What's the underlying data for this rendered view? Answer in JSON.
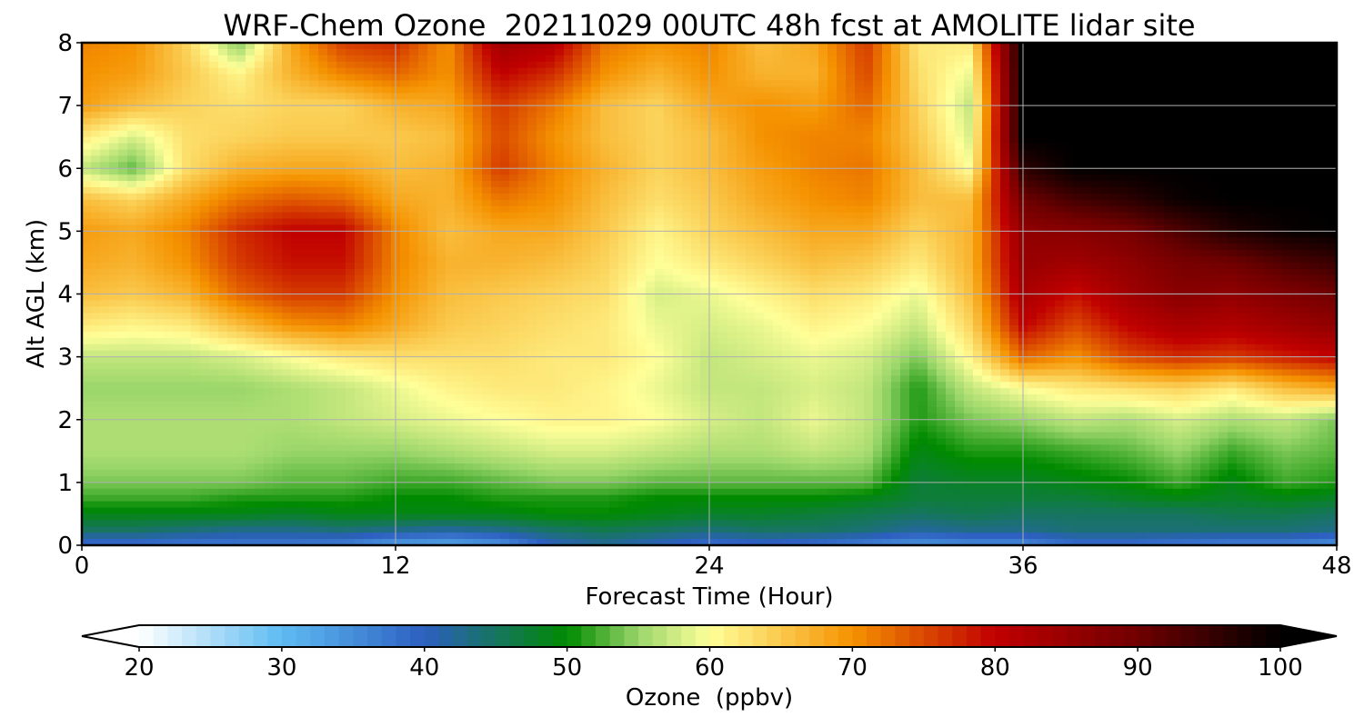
{
  "chart_data": {
    "type": "heatmap",
    "title": "WRF-Chem Ozone  20211029 00UTC 48h fcst at AMOLITE lidar site",
    "xlabel": "Forecast Time (Hour)",
    "ylabel": "Alt AGL (km)",
    "xlim": [
      0,
      48
    ],
    "ylim": [
      0,
      8
    ],
    "xticks": [
      "0",
      "12",
      "24",
      "36",
      "48"
    ],
    "yticks": [
      "0",
      "1",
      "2",
      "3",
      "4",
      "5",
      "6",
      "7",
      "8"
    ],
    "grid": true,
    "colorbar": {
      "label": "Ozone  (ppbv)",
      "range": [
        20,
        100
      ],
      "ticks": [
        "20",
        "30",
        "40",
        "50",
        "60",
        "70",
        "80",
        "90",
        "100"
      ],
      "extend": "both",
      "colors": [
        {
          "v": 20,
          "c": "#ffffff"
        },
        {
          "v": 30,
          "c": "#5ebcf2"
        },
        {
          "v": 40,
          "c": "#2d5fc0"
        },
        {
          "v": 50,
          "c": "#008a00"
        },
        {
          "v": 55,
          "c": "#9ad66a"
        },
        {
          "v": 60,
          "c": "#ffff99"
        },
        {
          "v": 70,
          "c": "#f59200"
        },
        {
          "v": 80,
          "c": "#c00000"
        },
        {
          "v": 90,
          "c": "#700000"
        },
        {
          "v": 100,
          "c": "#000000"
        }
      ]
    },
    "x": [
      0,
      2,
      4,
      6,
      8,
      10,
      12,
      14,
      16,
      18,
      20,
      22,
      24,
      26,
      28,
      30,
      32,
      34,
      36,
      38,
      40,
      42,
      44,
      46,
      48
    ],
    "y": [
      0,
      0.25,
      0.5,
      0.75,
      1,
      1.5,
      2,
      2.5,
      3,
      3.5,
      4,
      4.5,
      5,
      5.5,
      6,
      6.5,
      7,
      7.5,
      8
    ],
    "values": [
      [
        38,
        38,
        37,
        37,
        37,
        36,
        33,
        32,
        34,
        40,
        42,
        40,
        38,
        39,
        38,
        36,
        34,
        35,
        35,
        38,
        38,
        37,
        36,
        36,
        34
      ],
      [
        45,
        45,
        44,
        43,
        43,
        44,
        43,
        42,
        43,
        45,
        46,
        45,
        44,
        45,
        45,
        44,
        42,
        43,
        43,
        44,
        44,
        44,
        44,
        44,
        43
      ],
      [
        49,
        49,
        49,
        49,
        48,
        49,
        49,
        49,
        49,
        50,
        50,
        49,
        48,
        48,
        47,
        46,
        45,
        46,
        45,
        45,
        45,
        45,
        46,
        46,
        45
      ],
      [
        52,
        52,
        52,
        51,
        51,
        51,
        50,
        50,
        51,
        51,
        51,
        50,
        50,
        50,
        50,
        49,
        47,
        47,
        47,
        47,
        48,
        49,
        48,
        49,
        48
      ],
      [
        54,
        54,
        54,
        54,
        53,
        53,
        52,
        52,
        53,
        54,
        54,
        53,
        53,
        53,
        53,
        53,
        47,
        48,
        48,
        49,
        50,
        52,
        49,
        52,
        51
      ],
      [
        56,
        56,
        56,
        56,
        55,
        55,
        55,
        56,
        57,
        58,
        58,
        57,
        56,
        56,
        57,
        56,
        49,
        51,
        51,
        52,
        53,
        55,
        52,
        54,
        53
      ],
      [
        56,
        56,
        56,
        56,
        56,
        57,
        58,
        59,
        60,
        61,
        61,
        60,
        58,
        57,
        59,
        57,
        51,
        54,
        55,
        57,
        56,
        58,
        56,
        57,
        54
      ],
      [
        55,
        55,
        55,
        55,
        56,
        57,
        59,
        61,
        62,
        62,
        61,
        59,
        57,
        57,
        58,
        57,
        51,
        57,
        60,
        62,
        63,
        64,
        62,
        66,
        68
      ],
      [
        57,
        57,
        57,
        58,
        60,
        62,
        63,
        63,
        63,
        62,
        62,
        60,
        57,
        58,
        59,
        58,
        54,
        61,
        73,
        70,
        75,
        77,
        76,
        78,
        80
      ],
      [
        62,
        61,
        62,
        66,
        70,
        71,
        68,
        65,
        64,
        63,
        62,
        59,
        58,
        59,
        61,
        60,
        57,
        64,
        80,
        75,
        80,
        83,
        82,
        84,
        86
      ],
      [
        66,
        65,
        67,
        73,
        76,
        76,
        70,
        66,
        65,
        64,
        63,
        58,
        59,
        61,
        63,
        62,
        59,
        66,
        83,
        79,
        84,
        87,
        86,
        88,
        90
      ],
      [
        68,
        67,
        70,
        76,
        79,
        79,
        71,
        67,
        67,
        66,
        64,
        60,
        62,
        64,
        66,
        65,
        62,
        67,
        85,
        84,
        86,
        89,
        90,
        93,
        95
      ],
      [
        69,
        68,
        71,
        77,
        80,
        80,
        71,
        66,
        68,
        68,
        65,
        61,
        64,
        66,
        68,
        68,
        64,
        67,
        86,
        87,
        89,
        93,
        97,
        99,
        100
      ],
      [
        66,
        64,
        68,
        72,
        74,
        73,
        68,
        67,
        72,
        70,
        66,
        63,
        65,
        68,
        70,
        71,
        66,
        66,
        90,
        94,
        96,
        99,
        100,
        100,
        100
      ],
      [
        57,
        53,
        63,
        67,
        68,
        68,
        66,
        67,
        76,
        71,
        67,
        64,
        66,
        69,
        71,
        72,
        66,
        60,
        96,
        100,
        100,
        100,
        100,
        100,
        100
      ],
      [
        62,
        58,
        63,
        64,
        65,
        65,
        65,
        66,
        75,
        70,
        66,
        64,
        66,
        70,
        71,
        71,
        65,
        58,
        100,
        100,
        100,
        100,
        100,
        100,
        100
      ],
      [
        69,
        66,
        64,
        63,
        64,
        64,
        67,
        68,
        76,
        72,
        66,
        64,
        68,
        70,
        69,
        73,
        64,
        57,
        100,
        100,
        100,
        100,
        100,
        100,
        100
      ],
      [
        70,
        69,
        65,
        61,
        67,
        71,
        73,
        70,
        80,
        77,
        70,
        67,
        70,
        67,
        67,
        75,
        63,
        59,
        100,
        100,
        100,
        100,
        100,
        100,
        100
      ],
      [
        71,
        70,
        64,
        54,
        68,
        76,
        77,
        70,
        84,
        82,
        72,
        70,
        71,
        66,
        68,
        76,
        62,
        62,
        100,
        100,
        100,
        100,
        100,
        100,
        100
      ]
    ]
  }
}
